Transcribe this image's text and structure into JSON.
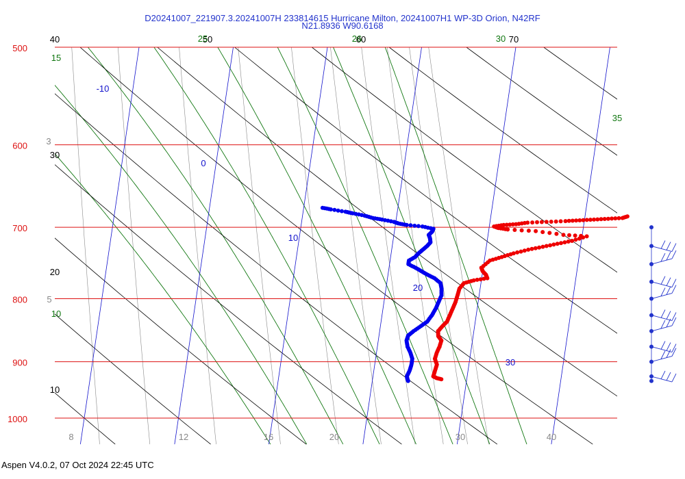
{
  "title_line1": "D20241007_221907.3.20241007H 233814615 Hurricane Milton, 20241007H1 WP-3D Orion, N42RF",
  "title_line2": "N21.8936 W90.6168",
  "footer": "Aspen V4.0.2, 07 Oct 2024  22:45 UTC",
  "colors": {
    "isobar": "#dd1111",
    "isotherm": "#1111cc",
    "dry_adiabat": "#000000",
    "moist_adiabat": "#117711",
    "mixing_ratio": "#888888",
    "temperature": "#ee0000",
    "dewpoint": "#0000ee",
    "wind": "#2233cc"
  },
  "chart_data": {
    "type": "scatter",
    "chart_kind": "skew-T log-P thermodynamic diagram",
    "y_scale": "log",
    "pressure_range_hPa": [
      1000,
      500
    ],
    "pressure_ticks": [
      500,
      600,
      700,
      800,
      900,
      1000
    ],
    "isotherm_labels": [
      "-10",
      "0",
      "10",
      "20",
      "30"
    ],
    "bottom_temperature_labels": [
      "8",
      "12",
      "16",
      "20",
      "30",
      "40"
    ],
    "dry_adiabat_labels": [
      "40",
      "30",
      "20",
      "10",
      "50",
      "60",
      "70"
    ],
    "moist_adiabat_labels": [
      "15",
      "10",
      "25",
      "26",
      "30",
      "35"
    ],
    "mixing_ratio_labels": [
      "3",
      "5"
    ],
    "series": [
      {
        "name": "",
        "role": "temperature",
        "points": [
          [
            930,
            27.3
          ],
          [
            928,
            26.8
          ],
          [
            925,
            26.4
          ],
          [
            915,
            26.5
          ],
          [
            905,
            26.6
          ],
          [
            895,
            26.3
          ],
          [
            885,
            26.4
          ],
          [
            875,
            26.6
          ],
          [
            865,
            26.7
          ],
          [
            858,
            26.3
          ],
          [
            850,
            26.2
          ],
          [
            842,
            26.6
          ],
          [
            835,
            27.0
          ],
          [
            825,
            27.2
          ],
          [
            815,
            27.4
          ],
          [
            805,
            27.6
          ],
          [
            795,
            27.7
          ],
          [
            785,
            27.8
          ],
          [
            777,
            28.2
          ],
          [
            773,
            29.2
          ],
          [
            770,
            30.6
          ],
          [
            765,
            30.4
          ],
          [
            760,
            30.0
          ],
          [
            755,
            29.8
          ],
          [
            745,
            30.6
          ],
          [
            740,
            31.8
          ],
          [
            735,
            33.0
          ],
          [
            730,
            34.5
          ],
          [
            726,
            36.0
          ],
          [
            722,
            37.5
          ],
          [
            718,
            39.0
          ],
          [
            712,
            40.5
          ],
          [
            710,
            38.0
          ],
          [
            705,
            35.0
          ],
          [
            703,
            32.0
          ],
          [
            701,
            31.0
          ],
          [
            699,
            30.5
          ],
          [
            697,
            31.5
          ],
          [
            696,
            32.8
          ],
          [
            694,
            34.0
          ],
          [
            693,
            36.0
          ],
          [
            692,
            38.0
          ],
          [
            691,
            39.5
          ],
          [
            690,
            41.0
          ],
          [
            689,
            42.5
          ],
          [
            688,
            44.0
          ],
          [
            686,
            44.5
          ]
        ]
      },
      {
        "name": "",
        "role": "dewpoint",
        "points": [
          [
            933,
            23.8
          ],
          [
            930,
            23.7
          ],
          [
            925,
            23.6
          ],
          [
            915,
            23.8
          ],
          [
            905,
            23.9
          ],
          [
            895,
            23.9
          ],
          [
            885,
            23.6
          ],
          [
            875,
            23.2
          ],
          [
            865,
            23.0
          ],
          [
            857,
            23.1
          ],
          [
            850,
            23.6
          ],
          [
            842,
            24.3
          ],
          [
            835,
            24.9
          ],
          [
            825,
            25.3
          ],
          [
            815,
            25.6
          ],
          [
            805,
            25.8
          ],
          [
            795,
            26.0
          ],
          [
            785,
            25.9
          ],
          [
            777,
            25.7
          ],
          [
            770,
            25.0
          ],
          [
            765,
            24.2
          ],
          [
            760,
            23.5
          ],
          [
            755,
            22.8
          ],
          [
            750,
            22.0
          ],
          [
            745,
            22.0
          ],
          [
            740,
            22.6
          ],
          [
            735,
            22.9
          ],
          [
            730,
            23.3
          ],
          [
            725,
            23.7
          ],
          [
            720,
            24.0
          ],
          [
            715,
            23.9
          ],
          [
            710,
            23.7
          ],
          [
            706,
            24.0
          ],
          [
            702,
            24.1
          ],
          [
            699,
            22.9
          ],
          [
            697,
            21.2
          ],
          [
            695,
            20.3
          ],
          [
            693,
            19.8
          ],
          [
            690,
            18.5
          ],
          [
            688,
            17.5
          ],
          [
            685,
            16.6
          ],
          [
            682,
            15.3
          ],
          [
            680,
            14.5
          ],
          [
            677,
            12.9
          ],
          [
            675,
            12.0
          ]
        ]
      }
    ],
    "wind_barbs": [
      {
        "pressure_hPa": 700
      },
      {
        "pressure_hPa": 725
      },
      {
        "pressure_hPa": 750
      },
      {
        "pressure_hPa": 775
      },
      {
        "pressure_hPa": 800
      },
      {
        "pressure_hPa": 825
      },
      {
        "pressure_hPa": 850
      },
      {
        "pressure_hPa": 875
      },
      {
        "pressure_hPa": 900
      },
      {
        "pressure_hPa": 925
      },
      {
        "pressure_hPa": 933
      }
    ]
  }
}
